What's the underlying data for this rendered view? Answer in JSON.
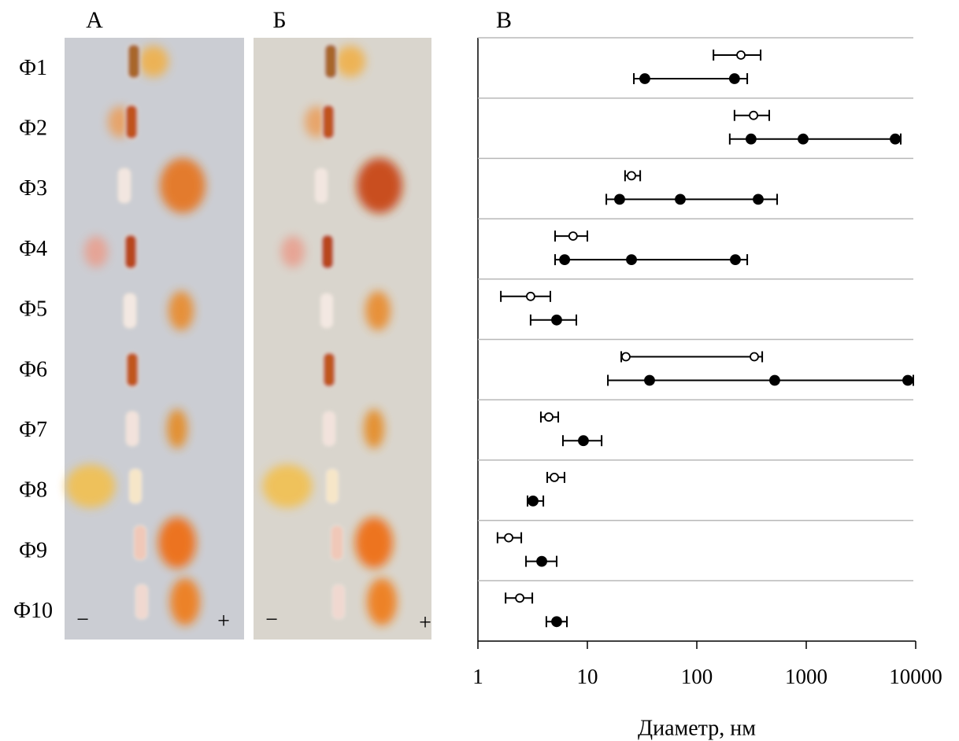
{
  "gels": [
    {
      "label": "А",
      "minus": "−",
      "plus": "+"
    },
    {
      "label": "Б",
      "minus": "−",
      "plus": "+"
    }
  ],
  "chart_data": {
    "type": "dot_range",
    "panel_label": "В",
    "xlabel": "Диаметр, нм",
    "xscale": "log",
    "xlim": [
      1,
      10000
    ],
    "xticks": [
      1,
      10,
      100,
      1000,
      10000
    ],
    "categories": [
      "Ф1",
      "Ф2",
      "Ф3",
      "Ф4",
      "Ф5",
      "Ф6",
      "Ф7",
      "Ф8",
      "Ф9",
      "Ф10"
    ],
    "series": [
      {
        "marker": "open",
        "color": "#000000",
        "points": [
          [
            253
          ],
          [
            330
          ],
          [
            25.3
          ],
          [
            7.4
          ],
          [
            3.03
          ],
          [
            22.5,
            335
          ],
          [
            4.44
          ],
          [
            4.99
          ],
          [
            1.91
          ],
          [
            2.41
          ]
        ],
        "ranges": [
          [
            142,
            383
          ],
          [
            221,
            459
          ],
          [
            22.1,
            30.4
          ],
          [
            5.07,
            10
          ],
          [
            1.62,
            4.59
          ],
          [
            20.4,
            396
          ],
          [
            3.76,
            5.42
          ],
          [
            4.3,
            6.18
          ],
          [
            1.51,
            2.49
          ],
          [
            1.79,
            3.14
          ]
        ]
      },
      {
        "marker": "filled",
        "color": "#000000",
        "points": [
          [
            33.5,
            221
          ],
          [
            313,
            936,
            6500
          ],
          [
            19.7,
            70.6,
            364
          ],
          [
            6.2,
            25.3,
            225
          ],
          [
            5.24
          ],
          [
            37,
            515,
            8470
          ],
          [
            9.2
          ],
          [
            3.19
          ],
          [
            3.83
          ],
          [
            5.24
          ]
        ],
        "ranges": [
          [
            26.6,
            289
          ],
          [
            200,
            7300
          ],
          [
            14.9,
            542
          ],
          [
            5.07,
            289
          ],
          [
            3.03,
            7.93
          ],
          [
            15.4,
            9510
          ],
          [
            5.98,
            13.5
          ],
          [
            2.84,
            3.96
          ],
          [
            2.75,
            5.24
          ],
          [
            4.22,
            6.5
          ]
        ]
      }
    ]
  }
}
